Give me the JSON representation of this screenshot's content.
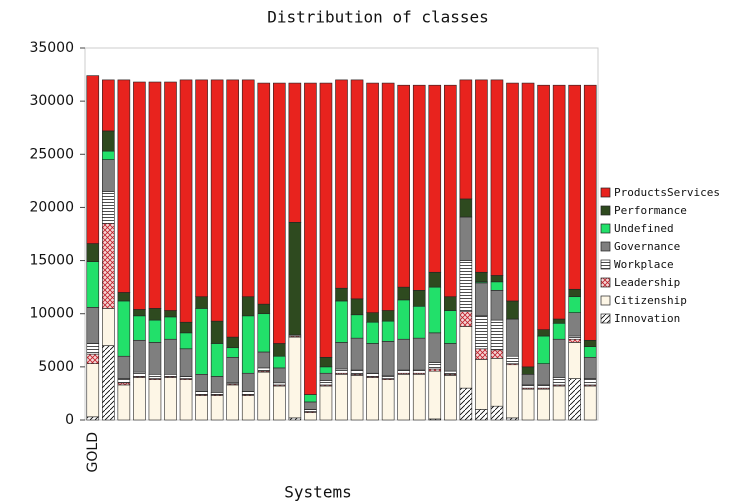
{
  "chart_data": {
    "type": "stacked_bar",
    "title": "Distribution of classes",
    "xlabel": "Systems",
    "categories": [
      "GOLD",
      null,
      null,
      null,
      null,
      null,
      null,
      null,
      null,
      null,
      null,
      null,
      null,
      null,
      null,
      null,
      null,
      null,
      null,
      null,
      null,
      null,
      null,
      null,
      null,
      null,
      null,
      null,
      null,
      null,
      null,
      null,
      null
    ],
    "ylim": [
      0,
      35000
    ],
    "yticks": [
      0,
      5000,
      10000,
      15000,
      20000,
      25000,
      30000,
      35000
    ],
    "grid": false,
    "legend": "right",
    "series": [
      {
        "name": "Innovation",
        "color": "#ffffff",
        "pattern": "diagonal",
        "values": [
          300,
          7000,
          0,
          0,
          0,
          0,
          0,
          0,
          0,
          0,
          0,
          0,
          0,
          200,
          0,
          0,
          0,
          0,
          0,
          0,
          0,
          0,
          100,
          0,
          3000,
          1000,
          1300,
          200,
          0,
          0,
          0,
          3900,
          0
        ]
      },
      {
        "name": "Citizenship",
        "color": "#fdf6e6",
        "values": [
          5000,
          3500,
          3300,
          4000,
          3800,
          4000,
          3800,
          2300,
          2300,
          3300,
          2300,
          4500,
          3200,
          7600,
          700,
          3200,
          4300,
          4200,
          4000,
          3800,
          4300,
          4300,
          4500,
          4200,
          5800,
          4700,
          4500,
          5000,
          2900,
          2900,
          3200,
          3400,
          3200
        ]
      },
      {
        "name": "Leadership",
        "color": "#f3d6d6",
        "pattern": "cross",
        "values": [
          900,
          8000,
          200,
          100,
          100,
          100,
          100,
          100,
          100,
          100,
          100,
          100,
          100,
          100,
          100,
          100,
          100,
          100,
          100,
          100,
          100,
          100,
          200,
          100,
          1400,
          1000,
          800,
          100,
          100,
          100,
          100,
          300,
          100
        ]
      },
      {
        "name": "Workplace",
        "color": "#ffffff",
        "pattern": "horizontal",
        "values": [
          1000,
          3000,
          400,
          400,
          400,
          200,
          200,
          300,
          200,
          100,
          300,
          300,
          200,
          100,
          200,
          400,
          400,
          400,
          300,
          300,
          300,
          300,
          600,
          300,
          4800,
          3100,
          2800,
          700,
          300,
          300,
          700,
          300,
          600
        ]
      },
      {
        "name": "Governance",
        "color": "#7f7f7f",
        "values": [
          3400,
          3000,
          2100,
          3000,
          3000,
          3300,
          2600,
          1600,
          1500,
          2400,
          1700,
          1500,
          1400,
          0,
          700,
          700,
          2500,
          3000,
          2800,
          3200,
          2900,
          3000,
          2800,
          2600,
          4100,
          3100,
          2800,
          3500,
          1000,
          2000,
          3600,
          2200,
          2000
        ]
      },
      {
        "name": "Undefined",
        "color": "#22e06a",
        "values": [
          4300,
          800,
          5200,
          2300,
          2100,
          2100,
          1500,
          6200,
          3100,
          900,
          5400,
          3600,
          1100,
          0,
          700,
          600,
          3900,
          2200,
          2000,
          1900,
          3700,
          3000,
          4300,
          3100,
          0,
          100,
          800,
          0,
          0,
          2600,
          1500,
          1500,
          1000
        ]
      },
      {
        "name": "Performance",
        "color": "#2e4a1f",
        "values": [
          1700,
          1900,
          800,
          600,
          1100,
          600,
          1000,
          1100,
          2100,
          1000,
          1800,
          900,
          1200,
          10600,
          0,
          900,
          1200,
          1500,
          900,
          1000,
          1200,
          1500,
          1400,
          1300,
          1700,
          900,
          600,
          1700,
          700,
          600,
          400,
          700,
          600
        ]
      },
      {
        "name": "ProductsServices",
        "color": "#e8231e",
        "values": [
          15800,
          4800,
          20000,
          21400,
          21300,
          21500,
          22800,
          20400,
          22700,
          24200,
          20400,
          20800,
          24500,
          13100,
          29300,
          25800,
          19600,
          20600,
          21600,
          21400,
          19000,
          19300,
          17600,
          19900,
          11200,
          18100,
          18400,
          20500,
          26700,
          23000,
          22000,
          19200,
          24000
        ]
      }
    ]
  }
}
